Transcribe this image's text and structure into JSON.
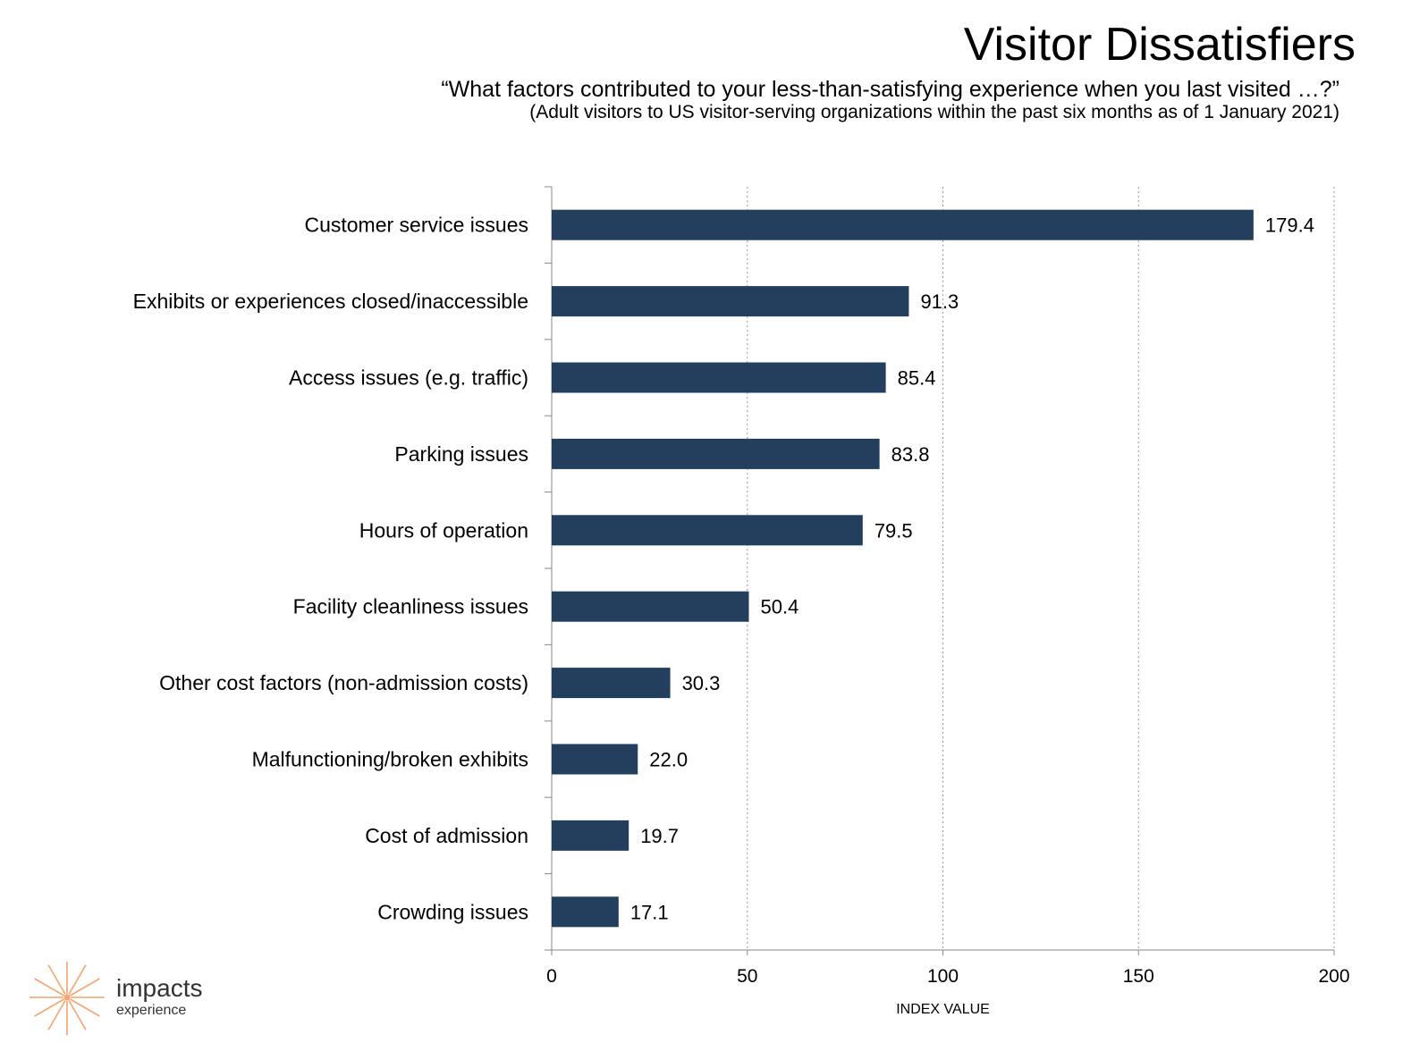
{
  "header": {
    "title": "Visitor Dissatisfiers",
    "subtitle": "“What factors contributed to your less-than-satisfying experience when you last visited …?”",
    "note": "(Adult visitors to US visitor-serving organizations within the past six months as of 1 January 2021)"
  },
  "logo": {
    "name": "impacts",
    "tagline": "experience",
    "icon": "starburst-icon",
    "color": "#f4a46e"
  },
  "chart_data": {
    "type": "bar",
    "orientation": "horizontal",
    "categories": [
      "Customer service issues",
      "Exhibits or experiences closed/inaccessible",
      "Access issues (e.g. traffic)",
      "Parking issues",
      "Hours of operation",
      "Facility cleanliness issues",
      "Other cost factors (non-admission costs)",
      "Malfunctioning/broken exhibits",
      "Cost of admission",
      "Crowding issues"
    ],
    "values": [
      179.4,
      91.3,
      85.4,
      83.8,
      79.5,
      50.4,
      30.3,
      22.0,
      19.7,
      17.1
    ],
    "value_labels": [
      "179.4",
      "91.3",
      "85.4",
      "83.8",
      "79.5",
      "50.4",
      "30.3",
      "22.0",
      "19.7",
      "17.1"
    ],
    "xlabel": "INDEX VALUE",
    "ylabel": "",
    "xlim": [
      0,
      200
    ],
    "xticks": [
      0,
      50,
      100,
      150,
      200
    ],
    "grid": "vertical dotted",
    "bar_color": "#243f5e"
  }
}
